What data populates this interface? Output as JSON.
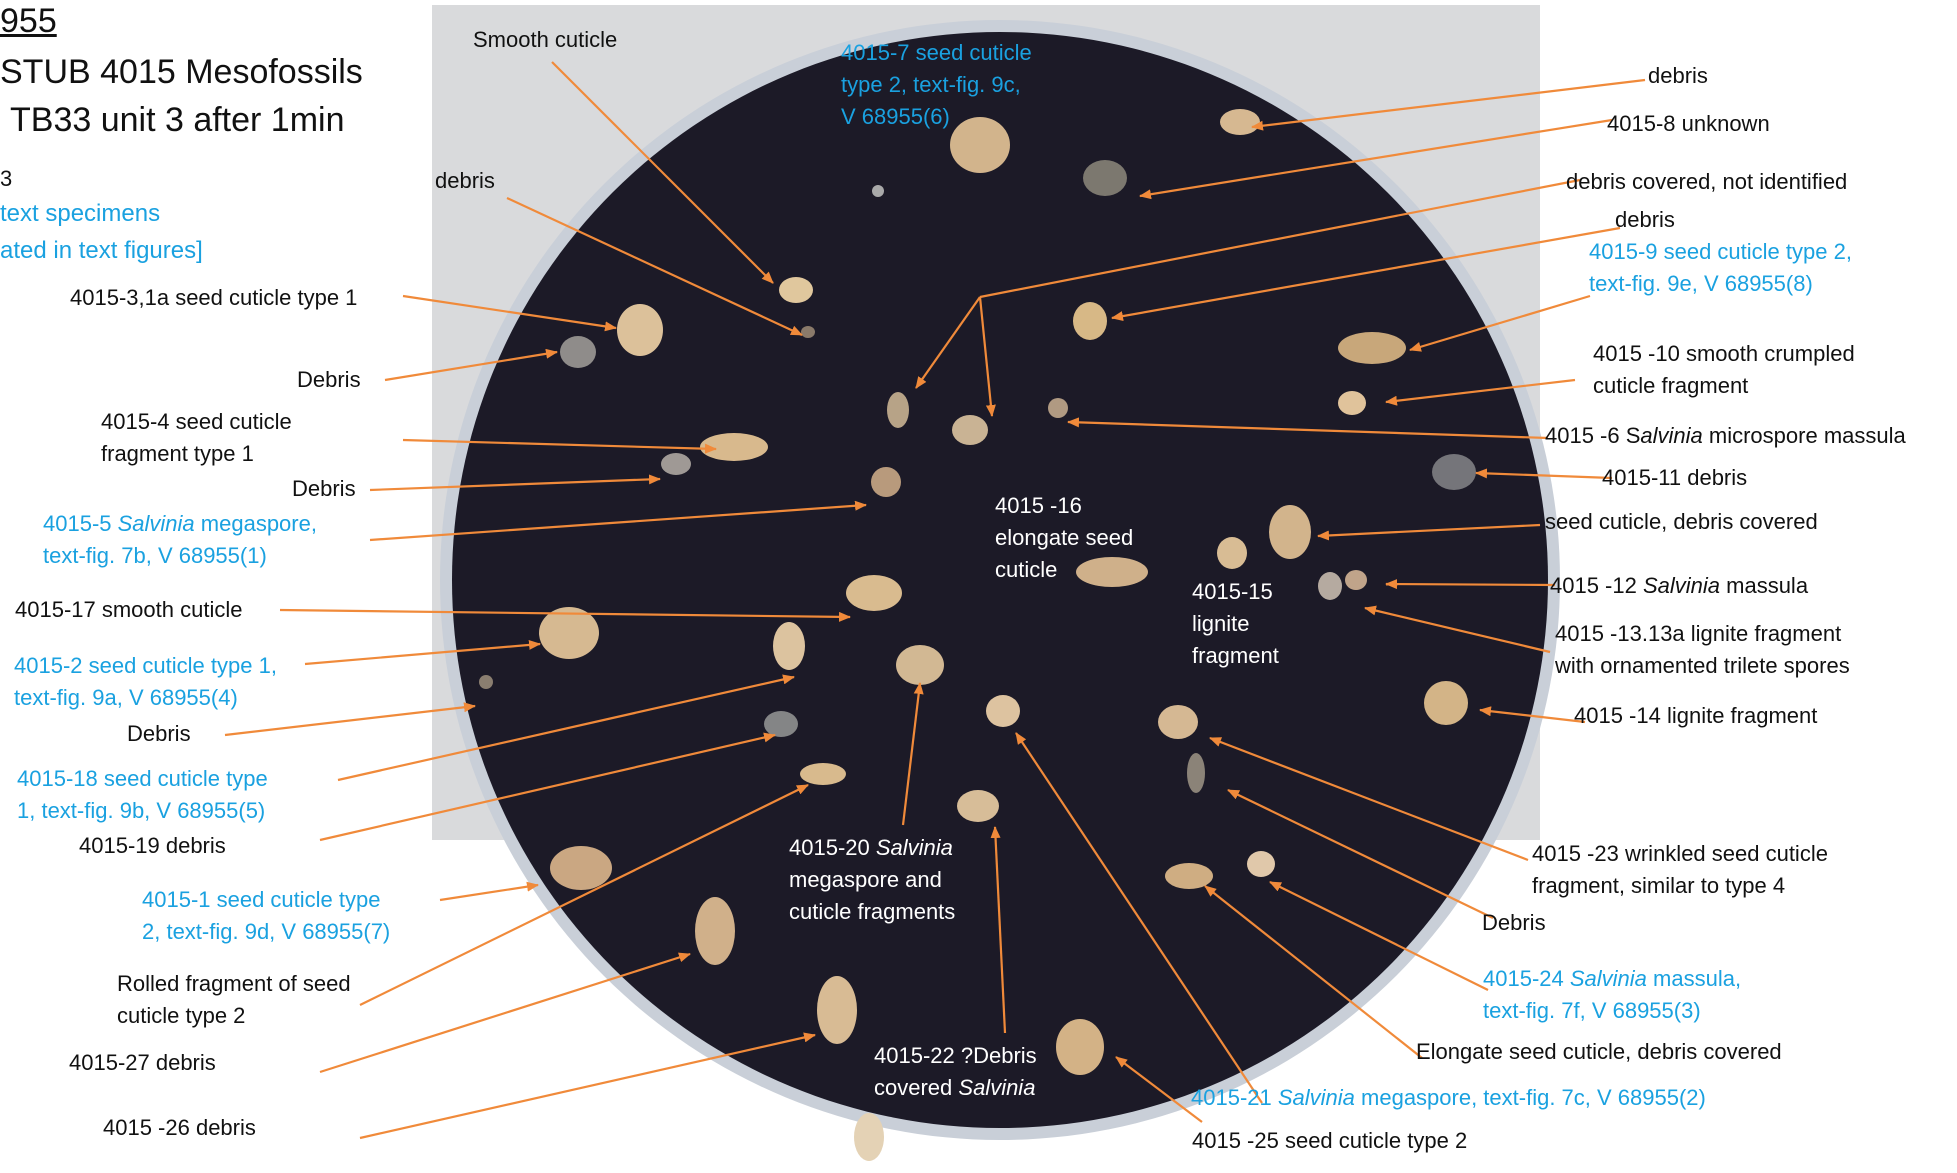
{
  "header": {
    "line1": "955",
    "line2": "STUB 4015 Mesofossils",
    "line3": "TB33 unit 3 after 1min",
    "line4": "3",
    "line5": "text specimens",
    "line6": "ated in text figures]"
  },
  "colors": {
    "accent_blue": "#1aa1e0",
    "arrow_orange": "#f08a3a",
    "stub_dark": "#1c1a27",
    "background_gray": "#d9dadc"
  },
  "labels": {
    "smooth_cuticle": "Smooth cuticle",
    "s4015_7_l1": "4015-7 seed cuticle",
    "s4015_7_l2": "type 2, text-fig. 9c,",
    "s4015_7_l3": "V 68955(6)",
    "debris_top": "debris",
    "debris_top_right": "debris",
    "s4015_8": "4015-8 unknown",
    "debris_covered": "debris covered, not identified",
    "debris_right2": "debris",
    "s4015_9_l1": "4015-9 seed cuticle type 2,",
    "s4015_9_l2": "text-fig. 9e, V 68955(8)",
    "s4015_3": "4015-3,1a seed cuticle type 1",
    "debris_left1": "Debris",
    "s4015_10_l1": "4015 -10 smooth crumpled",
    "s4015_10_l2": "cuticle fragment",
    "s4015_4_l1": "4015-4  seed cuticle",
    "s4015_4_l2": "fragment type 1",
    "s4015_6_pre": "4015 -6  S",
    "s4015_6_ital": "alvinia",
    "s4015_6_post": " microspore massula",
    "debris_left2": "Debris",
    "s4015_11": "4015-11 debris",
    "s4015_5_pre": "4015-5 ",
    "s4015_5_ital": "Salvinia",
    "s4015_5_post": " megaspore,",
    "s4015_5_l2": "text-fig. 7b, V 68955(1)",
    "s4015_16_l1": "4015 -16",
    "s4015_16_l2": "elongate seed",
    "s4015_16_l3": "cuticle",
    "seed_cuticle_debris": "seed cuticle, debris covered",
    "s4015_15_l1": "4015-15",
    "s4015_15_l2": "lignite",
    "s4015_15_l3": "fragment",
    "s4015_12_pre": "4015 -12 ",
    "s4015_12_ital": "Salvinia",
    "s4015_12_post": " massula",
    "s4015_17": "4015-17 smooth cuticle",
    "s4015_13_l1": "4015 -13.13a lignite fragment",
    "s4015_13_l2": "with ornamented trilete spores",
    "s4015_2_l1": "4015-2 seed cuticle type 1,",
    "s4015_2_l2": "text-fig. 9a, V 68955(4)",
    "debris_left3": "Debris",
    "s4015_14": "4015 -14 lignite fragment",
    "s4015_18_l1": "4015-18 seed cuticle type",
    "s4015_18_l2": "1, text-fig. 9b, V 68955(5)",
    "s4015_19": "4015-19 debris",
    "s4015_20_pre": "4015-20 ",
    "s4015_20_ital": "Salvinia",
    "s4015_20_l2": "megaspore and",
    "s4015_20_l3": "cuticle fragments",
    "s4015_23_l1": "4015 -23 wrinkled seed cuticle",
    "s4015_23_l2": "fragment, similar to type 4",
    "s4015_1_l1": "4015-1 seed cuticle type",
    "s4015_1_l2": "2, text-fig. 9d, V 68955(7)",
    "debris_right3": "Debris",
    "rolled_l1": "Rolled fragment of seed",
    "rolled_l2": "cuticle type 2",
    "s4015_24_pre": "4015-24 ",
    "s4015_24_ital": "Salvinia",
    "s4015_24_post": " massula,",
    "s4015_24_l2": "text-fig. 7f, V 68955(3)",
    "s4015_27": "4015-27 debris",
    "elongate_debris": "Elongate seed cuticle, debris covered",
    "s4015_22_l1": "4015-22 ?Debris",
    "s4015_22_pre": "covered ",
    "s4015_22_ital": "Salvinia",
    "s4015_21_pre": "4015-21 ",
    "s4015_21_ital": "Salvinia",
    "s4015_21_post": " megaspore, text-fig. 7c, V 68955(2)",
    "s4015_26": "4015 -26 debris",
    "s4015_25": "4015 -25 seed cuticle type 2"
  }
}
